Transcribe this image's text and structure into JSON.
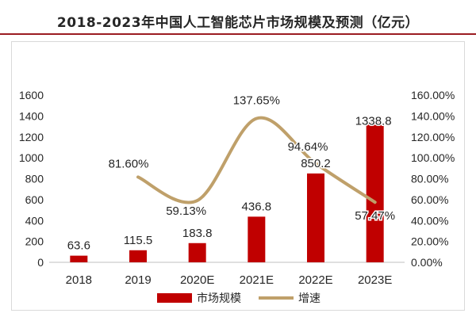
{
  "chart_data": {
    "type": "bar+line",
    "title": "2018-2023年中国人工智能芯片市场规模及预测（亿元）",
    "categories": [
      "2018",
      "2019",
      "2020E",
      "2021E",
      "2022E",
      "2023E"
    ],
    "series": [
      {
        "name": "市场规模",
        "type": "bar",
        "axis": "left",
        "values": [
          63.6,
          115.5,
          183.8,
          436.8,
          850.2,
          1338.8
        ],
        "labels": [
          "63.6",
          "115.5",
          "183.8",
          "436.8",
          "850.2",
          "1338.8"
        ]
      },
      {
        "name": "增速",
        "type": "line",
        "axis": "right",
        "values": [
          null,
          81.6,
          59.13,
          137.65,
          94.64,
          57.47
        ],
        "labels": [
          "",
          "81.60%",
          "59.13%",
          "137.65%",
          "94.64%",
          "57.47%"
        ]
      }
    ],
    "y_left": {
      "ylim": [
        0,
        1600
      ],
      "ticks": [
        "0",
        "200",
        "400",
        "600",
        "800",
        "1000",
        "1200",
        "1400",
        "1600"
      ]
    },
    "y_right": {
      "ylim": [
        0,
        160
      ],
      "ticks": [
        "0.00%",
        "20.00%",
        "40.00%",
        "60.00%",
        "80.00%",
        "100.00%",
        "120.00%",
        "140.00%",
        "160.00%"
      ]
    },
    "grid": false,
    "legend": "bottom-center"
  },
  "colors": {
    "bar": "#c00000",
    "line": "#bfa06a",
    "text": "#262626",
    "title_rule": "#9b1c21"
  }
}
